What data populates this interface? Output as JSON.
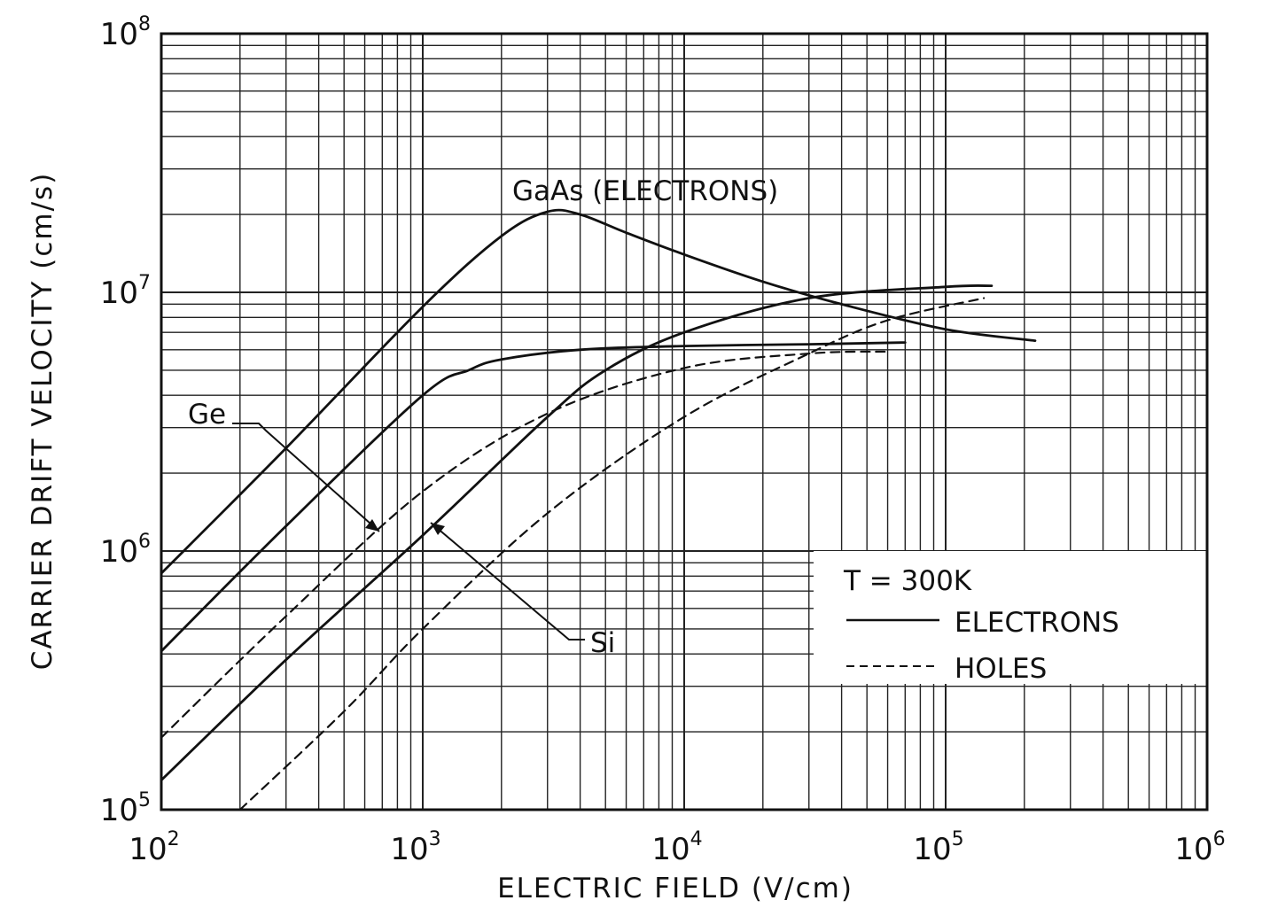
{
  "chart_data": {
    "type": "line",
    "title": "",
    "xlabel": "ELECTRIC FIELD (V/cm)",
    "ylabel": "CARRIER DRIFT VELOCITY (cm/s)",
    "x_scale": "log",
    "y_scale": "log",
    "xlim": [
      100,
      1000000
    ],
    "ylim": [
      100000,
      100000000
    ],
    "grid": true,
    "x_ticks": [
      {
        "base": "10",
        "exp": "2",
        "value": 100
      },
      {
        "base": "10",
        "exp": "3",
        "value": 1000
      },
      {
        "base": "10",
        "exp": "4",
        "value": 10000
      },
      {
        "base": "10",
        "exp": "5",
        "value": 100000
      },
      {
        "base": "10",
        "exp": "6",
        "value": 1000000
      }
    ],
    "y_ticks": [
      {
        "base": "10",
        "exp": "5",
        "value": 100000
      },
      {
        "base": "10",
        "exp": "6",
        "value": 1000000
      },
      {
        "base": "10",
        "exp": "7",
        "value": 10000000
      },
      {
        "base": "10",
        "exp": "8",
        "value": 100000000
      }
    ],
    "series": [
      {
        "name": "GaAs (ELECTRONS)",
        "style": "solid",
        "color": "#111111",
        "points": [
          [
            100,
            820000
          ],
          [
            300,
            2500000
          ],
          [
            1000,
            8800000
          ],
          [
            2000,
            16500000
          ],
          [
            3000,
            20500000
          ],
          [
            4000,
            20000000
          ],
          [
            6000,
            17000000
          ],
          [
            10000,
            14000000
          ],
          [
            20000,
            11000000
          ],
          [
            40000,
            9000000
          ],
          [
            100000,
            7200000
          ],
          [
            220000,
            6500000
          ]
        ]
      },
      {
        "name": "Ge electrons",
        "style": "solid",
        "color": "#111111",
        "points": [
          [
            100,
            410000
          ],
          [
            300,
            1250000
          ],
          [
            1000,
            4000000
          ],
          [
            1500,
            5000000
          ],
          [
            2000,
            5500000
          ],
          [
            4000,
            6000000
          ],
          [
            10000,
            6200000
          ],
          [
            30000,
            6300000
          ],
          [
            70000,
            6400000
          ]
        ]
      },
      {
        "name": "Ge holes",
        "style": "dashed",
        "color": "#111111",
        "points": [
          [
            100,
            190000
          ],
          [
            300,
            560000
          ],
          [
            1000,
            1700000
          ],
          [
            3000,
            3400000
          ],
          [
            10000,
            5100000
          ],
          [
            30000,
            5800000
          ],
          [
            60000,
            5900000
          ]
        ]
      },
      {
        "name": "Si electrons",
        "style": "solid",
        "color": "#111111",
        "points": [
          [
            100,
            130000
          ],
          [
            300,
            380000
          ],
          [
            1000,
            1150000
          ],
          [
            3000,
            3300000
          ],
          [
            5000,
            5000000
          ],
          [
            10000,
            7000000
          ],
          [
            30000,
            9500000
          ],
          [
            100000,
            10500000
          ],
          [
            150000,
            10600000
          ]
        ]
      },
      {
        "name": "Si holes",
        "style": "dashed",
        "color": "#111111",
        "points": [
          [
            200,
            100000
          ],
          [
            500,
            240000
          ],
          [
            1000,
            500000
          ],
          [
            3000,
            1400000
          ],
          [
            10000,
            3300000
          ],
          [
            30000,
            5800000
          ],
          [
            60000,
            7800000
          ],
          [
            140000,
            9500000
          ]
        ]
      }
    ],
    "annotations": {
      "gaas": "GaAs (ELECTRONS)",
      "ge": "Ge",
      "si": "Si"
    },
    "legend": {
      "position": "lower-right",
      "temperature": "T = 300K",
      "entries": [
        {
          "label": "ELECTRONS",
          "style": "solid"
        },
        {
          "label": "HOLES",
          "style": "dashed"
        }
      ]
    }
  }
}
